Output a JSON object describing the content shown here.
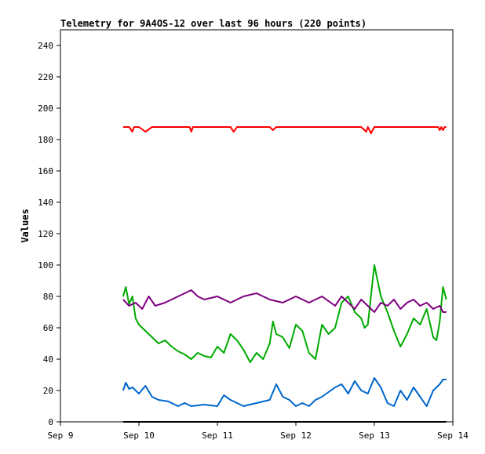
{
  "chart_data": {
    "type": "line",
    "title": "Telemetry for 9A4OS-12 over last 96 hours (220 points)",
    "xlabel": "",
    "ylabel": "Values",
    "xlim": [
      "2021-09-09",
      "2021-09-14"
    ],
    "ylim": [
      0,
      250
    ],
    "x_ticks": [
      {
        "date": "2021-09-09",
        "label": "Sep 9"
      },
      {
        "date": "2021-09-10",
        "label": "Sep 10"
      },
      {
        "date": "2021-09-11",
        "label": "Sep 11"
      },
      {
        "date": "2021-09-12",
        "label": "Sep 12"
      },
      {
        "date": "2021-09-13",
        "label": "Sep 13"
      },
      {
        "date": "2021-09-14",
        "label": "Sep 14"
      }
    ],
    "y_ticks": [
      0,
      20,
      40,
      60,
      80,
      100,
      120,
      140,
      160,
      180,
      200,
      220,
      240
    ],
    "grid": false,
    "legend": "none",
    "series": [
      {
        "color": "#ff0000",
        "x": [
          "2021-09-09T19:10",
          "2021-09-09T21:00",
          "2021-09-09T22:00",
          "2021-09-09T22:30",
          "2021-09-10T00:00",
          "2021-09-10T02:00",
          "2021-09-10T04:00",
          "2021-09-10T05:00",
          "2021-09-10T06:00",
          "2021-09-10T12:00",
          "2021-09-10T15:30",
          "2021-09-10T16:00",
          "2021-09-10T16:30",
          "2021-09-11T00:00",
          "2021-09-11T04:00",
          "2021-09-11T05:00",
          "2021-09-11T06:00",
          "2021-09-11T12:00",
          "2021-09-11T16:00",
          "2021-09-11T17:00",
          "2021-09-11T18:00",
          "2021-09-12T00:00",
          "2021-09-12T06:00",
          "2021-09-12T12:00",
          "2021-09-12T20:00",
          "2021-09-12T21:30",
          "2021-09-12T22:00",
          "2021-09-12T23:00",
          "2021-09-13T00:00",
          "2021-09-13T06:00",
          "2021-09-13T12:00",
          "2021-09-13T18:00",
          "2021-09-13T19:30",
          "2021-09-13T20:00",
          "2021-09-13T20:30",
          "2021-09-13T21:00",
          "2021-09-13T21:30",
          "2021-09-13T22:00"
        ],
        "values": [
          188,
          188,
          185,
          188,
          188,
          185,
          188,
          188,
          188,
          188,
          188,
          185,
          188,
          188,
          188,
          185,
          188,
          188,
          188,
          186,
          188,
          188,
          188,
          188,
          188,
          185,
          188,
          184,
          188,
          188,
          188,
          188,
          188,
          186,
          188,
          186,
          188,
          188
        ]
      },
      {
        "color": "#00aa00",
        "x": [
          "2021-09-09T19:10",
          "2021-09-09T20:00",
          "2021-09-09T21:00",
          "2021-09-09T22:00",
          "2021-09-09T23:00",
          "2021-09-10T00:00",
          "2021-09-10T02:00",
          "2021-09-10T04:00",
          "2021-09-10T06:00",
          "2021-09-10T08:00",
          "2021-09-10T10:00",
          "2021-09-10T12:00",
          "2021-09-10T14:00",
          "2021-09-10T16:00",
          "2021-09-10T18:00",
          "2021-09-10T20:00",
          "2021-09-10T22:00",
          "2021-09-11T00:00",
          "2021-09-11T02:00",
          "2021-09-11T04:00",
          "2021-09-11T06:00",
          "2021-09-11T08:00",
          "2021-09-11T10:00",
          "2021-09-11T12:00",
          "2021-09-11T14:00",
          "2021-09-11T16:00",
          "2021-09-11T17:00",
          "2021-09-11T18:00",
          "2021-09-11T20:00",
          "2021-09-11T22:00",
          "2021-09-12T00:00",
          "2021-09-12T02:00",
          "2021-09-12T04:00",
          "2021-09-12T06:00",
          "2021-09-12T08:00",
          "2021-09-12T10:00",
          "2021-09-12T12:00",
          "2021-09-12T14:00",
          "2021-09-12T16:00",
          "2021-09-12T18:00",
          "2021-09-12T20:00",
          "2021-09-12T21:00",
          "2021-09-12T22:00",
          "2021-09-13T00:00",
          "2021-09-13T02:00",
          "2021-09-13T04:00",
          "2021-09-13T06:00",
          "2021-09-13T08:00",
          "2021-09-13T10:00",
          "2021-09-13T12:00",
          "2021-09-13T14:00",
          "2021-09-13T16:00",
          "2021-09-13T18:00",
          "2021-09-13T19:00",
          "2021-09-13T20:00",
          "2021-09-13T21:00",
          "2021-09-13T22:00"
        ],
        "values": [
          80,
          86,
          75,
          80,
          66,
          62,
          58,
          54,
          50,
          52,
          48,
          45,
          43,
          40,
          44,
          42,
          41,
          48,
          44,
          56,
          52,
          46,
          38,
          44,
          40,
          50,
          64,
          56,
          54,
          47,
          62,
          58,
          44,
          40,
          62,
          56,
          60,
          76,
          80,
          70,
          66,
          60,
          62,
          100,
          80,
          70,
          58,
          48,
          56,
          66,
          62,
          72,
          54,
          52,
          64,
          86,
          78
        ]
      },
      {
        "color": "#800080",
        "x": [
          "2021-09-09T19:10",
          "2021-09-09T21:00",
          "2021-09-09T23:00",
          "2021-09-10T01:00",
          "2021-09-10T03:00",
          "2021-09-10T05:00",
          "2021-09-10T08:00",
          "2021-09-10T12:00",
          "2021-09-10T16:00",
          "2021-09-10T18:00",
          "2021-09-10T20:00",
          "2021-09-11T00:00",
          "2021-09-11T04:00",
          "2021-09-11T08:00",
          "2021-09-11T12:00",
          "2021-09-11T16:00",
          "2021-09-11T20:00",
          "2021-09-12T00:00",
          "2021-09-12T04:00",
          "2021-09-12T08:00",
          "2021-09-12T12:00",
          "2021-09-12T14:00",
          "2021-09-12T16:00",
          "2021-09-12T18:00",
          "2021-09-12T20:00",
          "2021-09-13T00:00",
          "2021-09-13T02:00",
          "2021-09-13T04:00",
          "2021-09-13T06:00",
          "2021-09-13T08:00",
          "2021-09-13T10:00",
          "2021-09-13T12:00",
          "2021-09-13T14:00",
          "2021-09-13T16:00",
          "2021-09-13T18:00",
          "2021-09-13T20:00",
          "2021-09-13T21:00",
          "2021-09-13T22:00"
        ],
        "values": [
          78,
          74,
          76,
          72,
          80,
          74,
          76,
          80,
          84,
          80,
          78,
          80,
          76,
          80,
          82,
          78,
          76,
          80,
          76,
          80,
          74,
          80,
          76,
          72,
          78,
          70,
          76,
          74,
          78,
          72,
          76,
          78,
          74,
          76,
          72,
          74,
          70,
          70
        ]
      },
      {
        "color": "#0066cc",
        "x": [
          "2021-09-09T19:10",
          "2021-09-09T20:00",
          "2021-09-09T21:00",
          "2021-09-09T22:00",
          "2021-09-10T00:00",
          "2021-09-10T02:00",
          "2021-09-10T04:00",
          "2021-09-10T06:00",
          "2021-09-10T09:00",
          "2021-09-10T12:00",
          "2021-09-10T14:00",
          "2021-09-10T16:00",
          "2021-09-10T20:00",
          "2021-09-11T00:00",
          "2021-09-11T02:00",
          "2021-09-11T04:00",
          "2021-09-11T06:00",
          "2021-09-11T08:00",
          "2021-09-11T12:00",
          "2021-09-11T16:00",
          "2021-09-11T18:00",
          "2021-09-11T20:00",
          "2021-09-11T22:00",
          "2021-09-12T00:00",
          "2021-09-12T02:00",
          "2021-09-12T04:00",
          "2021-09-12T06:00",
          "2021-09-12T08:00",
          "2021-09-12T12:00",
          "2021-09-12T14:00",
          "2021-09-12T16:00",
          "2021-09-12T18:00",
          "2021-09-12T20:00",
          "2021-09-12T22:00",
          "2021-09-13T00:00",
          "2021-09-13T02:00",
          "2021-09-13T04:00",
          "2021-09-13T06:00",
          "2021-09-13T08:00",
          "2021-09-13T10:00",
          "2021-09-13T12:00",
          "2021-09-13T14:00",
          "2021-09-13T16:00",
          "2021-09-13T18:00",
          "2021-09-13T20:00",
          "2021-09-13T21:00",
          "2021-09-13T22:00"
        ],
        "values": [
          20,
          25,
          21,
          22,
          18,
          23,
          16,
          14,
          13,
          10,
          12,
          10,
          11,
          10,
          17,
          14,
          12,
          10,
          12,
          14,
          24,
          16,
          14,
          10,
          12,
          10,
          14,
          16,
          22,
          24,
          18,
          26,
          20,
          18,
          28,
          22,
          12,
          10,
          20,
          14,
          22,
          16,
          10,
          20,
          24,
          27,
          27
        ]
      },
      {
        "color": "#000000",
        "x": [
          "2021-09-09T19:10",
          "2021-09-13T22:00"
        ],
        "values": [
          0,
          0
        ]
      }
    ]
  }
}
